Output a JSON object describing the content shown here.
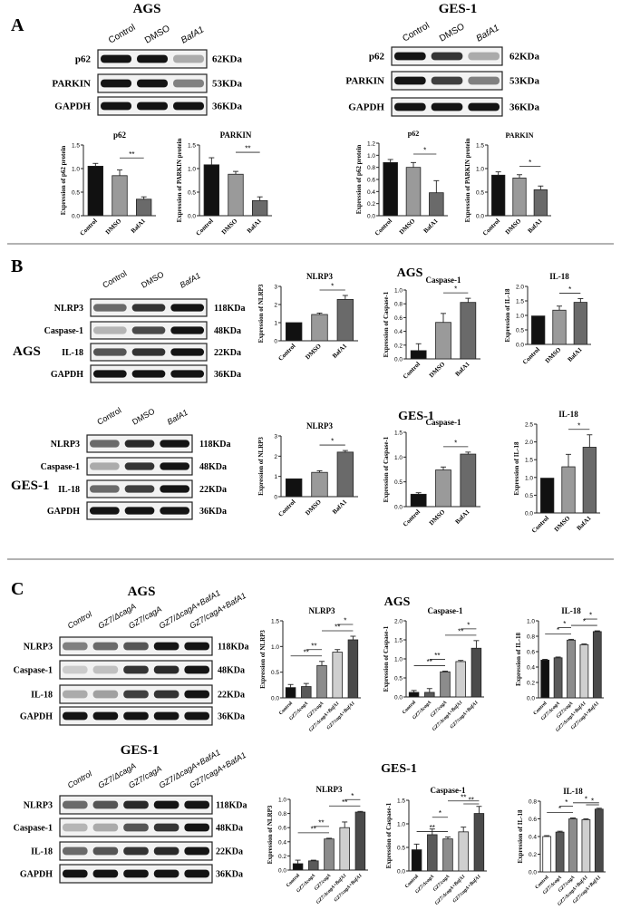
{
  "panel_a": {
    "letter": "A",
    "ags_title": "AGS",
    "ges1_title": "GES-1",
    "lanes": [
      "Control",
      "DMSO",
      "BafA1"
    ],
    "ags_blots": [
      {
        "label": "p62",
        "size": "62KDa",
        "intensity": [
          1,
          1,
          0.3
        ]
      },
      {
        "label": "PARKIN",
        "size": "53KDa",
        "intensity": [
          1,
          1,
          0.5
        ]
      },
      {
        "label": "GAPDH",
        "size": "36KDa",
        "intensity": [
          1,
          1,
          1
        ]
      }
    ],
    "ges1_blots": [
      {
        "label": "p62",
        "size": "62KDa",
        "intensity": [
          1,
          0.85,
          0.3
        ]
      },
      {
        "label": "PARKIN",
        "size": "53KDa",
        "intensity": [
          1,
          0.8,
          0.5
        ]
      },
      {
        "label": "GAPDH",
        "size": "36KDa",
        "intensity": [
          1,
          1,
          1
        ]
      }
    ]
  },
  "panel_b": {
    "letter": "B",
    "ags_label": "AGS",
    "ges1_label": "GES-1",
    "ags_group_title": "AGS",
    "ges1_group_title": "GES-1",
    "lanes": [
      "Control",
      "DMSO",
      "BafA1"
    ],
    "ags_blots": [
      {
        "label": "NLRP3",
        "size": "118KDa",
        "intensity": [
          0.6,
          0.85,
          1
        ]
      },
      {
        "label": "Caspase-1",
        "size": "48KDa",
        "intensity": [
          0.25,
          0.75,
          1
        ]
      },
      {
        "label": "IL-18",
        "size": "22KDa",
        "intensity": [
          0.7,
          0.85,
          1
        ]
      },
      {
        "label": "GAPDH",
        "size": "36KDa",
        "intensity": [
          1,
          1,
          1
        ]
      }
    ],
    "ges1_blots": [
      {
        "label": "NLRP3",
        "size": "118KDa",
        "intensity": [
          0.6,
          0.9,
          1
        ]
      },
      {
        "label": "Caspase-1",
        "size": "48KDa",
        "intensity": [
          0.3,
          0.85,
          1
        ]
      },
      {
        "label": "IL-18",
        "size": "22KDa",
        "intensity": [
          0.6,
          0.8,
          1
        ]
      },
      {
        "label": "GAPDH",
        "size": "36KDa",
        "intensity": [
          1,
          1,
          1
        ]
      }
    ]
  },
  "panel_c": {
    "letter": "C",
    "ags_title": "AGS",
    "ges1_title": "GES-1",
    "ags_chart_title": "AGS",
    "ges1_chart_title": "GES-1",
    "lanes": [
      "Control",
      "GZ7/ΔcagA",
      "GZ7/cagA",
      "GZ7/ΔcagA+BafA1",
      "GZ7/cagA+BafA1"
    ],
    "ags_blots": [
      {
        "label": "NLRP3",
        "size": "118KDa",
        "intensity": [
          0.5,
          0.6,
          0.7,
          1,
          1
        ]
      },
      {
        "label": "Caspase-1",
        "size": "48KDa",
        "intensity": [
          0.15,
          0.2,
          0.85,
          0.9,
          1
        ]
      },
      {
        "label": "IL-18",
        "size": "22KDa",
        "intensity": [
          0.3,
          0.35,
          0.8,
          0.85,
          1
        ]
      },
      {
        "label": "GAPDH",
        "size": "36KDa",
        "intensity": [
          1,
          1,
          1,
          1,
          1
        ]
      }
    ],
    "ges1_blots": [
      {
        "label": "NLRP3",
        "size": "118KDa",
        "intensity": [
          0.6,
          0.7,
          0.9,
          1,
          1
        ]
      },
      {
        "label": "Caspase-1",
        "size": "48KDa",
        "intensity": [
          0.25,
          0.3,
          0.7,
          0.85,
          1
        ]
      },
      {
        "label": "IL-18",
        "size": "22KDa",
        "intensity": [
          0.6,
          0.7,
          0.85,
          0.9,
          1
        ]
      },
      {
        "label": "GAPDH",
        "size": "36KDa",
        "intensity": [
          1,
          1,
          1,
          1,
          1
        ]
      }
    ]
  },
  "chart_data": [
    {
      "id": "a_ags_p62",
      "type": "bar",
      "title": "p62",
      "ylabel": "Expression of p62 protein",
      "categories": [
        "Control",
        "DMSO",
        "BafA1"
      ],
      "values": [
        1.05,
        0.85,
        0.35
      ],
      "errors": [
        0.06,
        0.12,
        0.05
      ],
      "colors": [
        "#111111",
        "#9a9a9a",
        "#6a6a6a"
      ],
      "ylim": [
        0,
        1.5
      ],
      "yticks": [
        "0.0",
        "0.5",
        "1.0",
        "1.5"
      ],
      "sig": [
        {
          "from": 1,
          "to": 2,
          "label": "**"
        }
      ]
    },
    {
      "id": "a_ags_parkin",
      "type": "bar",
      "title": "PARKIN",
      "ylabel": "Expression of PARKIN protein",
      "categories": [
        "Control",
        "DMSO",
        "BafA1"
      ],
      "values": [
        1.08,
        0.88,
        0.32
      ],
      "errors": [
        0.15,
        0.06,
        0.08
      ],
      "colors": [
        "#111111",
        "#9a9a9a",
        "#6a6a6a"
      ],
      "ylim": [
        0,
        1.5
      ],
      "yticks": [
        "0.0",
        "0.5",
        "1.0",
        "1.5"
      ],
      "sig": [
        {
          "from": 1,
          "to": 2,
          "label": "**"
        }
      ]
    },
    {
      "id": "a_ges1_p62",
      "type": "bar",
      "title": "p62",
      "ylabel": "Expression of p62 protein",
      "categories": [
        "Control",
        "DMSO",
        "BafA1"
      ],
      "values": [
        0.88,
        0.8,
        0.38
      ],
      "errors": [
        0.05,
        0.08,
        0.2
      ],
      "colors": [
        "#111111",
        "#9a9a9a",
        "#6a6a6a"
      ],
      "ylim": [
        0,
        1.2
      ],
      "yticks": [
        "0.0",
        "0.2",
        "0.4",
        "0.6",
        "0.8",
        "1.0",
        "1.2"
      ],
      "sig": [
        {
          "from": 1,
          "to": 2,
          "label": "*"
        }
      ]
    },
    {
      "id": "a_ges1_parkin",
      "type": "bar",
      "title": "PARKIN",
      "ylabel": "Expression of PARKIN protein",
      "categories": [
        "Control",
        "DMSO",
        "BafA1"
      ],
      "values": [
        0.86,
        0.8,
        0.55
      ],
      "errors": [
        0.07,
        0.07,
        0.08
      ],
      "colors": [
        "#111111",
        "#9a9a9a",
        "#6a6a6a"
      ],
      "ylim": [
        0,
        1.5
      ],
      "yticks": [
        "0.0",
        "0.5",
        "1.0",
        "1.5"
      ],
      "sig": [
        {
          "from": 1,
          "to": 2,
          "label": "*"
        }
      ]
    },
    {
      "id": "b_ags_nlrp3",
      "type": "bar",
      "title": "NLRP3",
      "ylabel": "Expression of NLRP3",
      "categories": [
        "Control",
        "DMSO",
        "BafA1"
      ],
      "values": [
        1.0,
        1.45,
        2.28
      ],
      "errors": [
        0,
        0.08,
        0.22
      ],
      "colors": [
        "#111111",
        "#9a9a9a",
        "#6a6a6a"
      ],
      "ylim": [
        0,
        3
      ],
      "yticks": [
        "0",
        "1",
        "2",
        "3"
      ],
      "sig": [
        {
          "from": 1,
          "to": 2,
          "label": "*"
        }
      ]
    },
    {
      "id": "b_ags_casp1",
      "type": "bar",
      "title": "Caspase-1",
      "ylabel": "Expression of Caspase-1",
      "categories": [
        "Control",
        "DMSO",
        "BafA1"
      ],
      "values": [
        0.12,
        0.53,
        0.82
      ],
      "errors": [
        0.1,
        0.13,
        0.06
      ],
      "colors": [
        "#111111",
        "#9a9a9a",
        "#6a6a6a"
      ],
      "ylim": [
        0,
        1.0
      ],
      "yticks": [
        "0.0",
        "0.2",
        "0.4",
        "0.6",
        "0.8",
        "1.0"
      ],
      "sig": [
        {
          "from": 1,
          "to": 2,
          "label": "*"
        }
      ]
    },
    {
      "id": "b_ags_il18",
      "type": "bar",
      "title": "IL-18",
      "ylabel": "Expression of IL-18",
      "categories": [
        "Control",
        "DMSO",
        "BafA1"
      ],
      "values": [
        0.98,
        1.18,
        1.45
      ],
      "errors": [
        0,
        0.14,
        0.13
      ],
      "colors": [
        "#111111",
        "#9a9a9a",
        "#6a6a6a"
      ],
      "ylim": [
        0,
        2.0
      ],
      "yticks": [
        "0.0",
        "0.5",
        "1.0",
        "1.5",
        "2.0"
      ],
      "sig": [
        {
          "from": 1,
          "to": 2,
          "label": "*"
        }
      ]
    },
    {
      "id": "b_ges1_nlrp3",
      "type": "bar",
      "title": "NLRP3",
      "ylabel": "Expression of NLRP3",
      "categories": [
        "Control",
        "DMSO",
        "BafA1"
      ],
      "values": [
        0.88,
        1.2,
        2.2
      ],
      "errors": [
        0,
        0.08,
        0.08
      ],
      "colors": [
        "#111111",
        "#9a9a9a",
        "#6a6a6a"
      ],
      "ylim": [
        0,
        3
      ],
      "yticks": [
        "0",
        "1",
        "2",
        "3"
      ],
      "sig": [
        {
          "from": 1,
          "to": 2,
          "label": "*"
        }
      ]
    },
    {
      "id": "b_ges1_casp1",
      "type": "bar",
      "title": "Caspase-1",
      "ylabel": "Expression of Caspase-1",
      "categories": [
        "Control",
        "DMSO",
        "BafA1"
      ],
      "values": [
        0.25,
        0.74,
        1.06
      ],
      "errors": [
        0.03,
        0.06,
        0.04
      ],
      "colors": [
        "#111111",
        "#9a9a9a",
        "#6a6a6a"
      ],
      "ylim": [
        0,
        1.5
      ],
      "yticks": [
        "0.0",
        "0.5",
        "1.0",
        "1.5"
      ],
      "sig": [
        {
          "from": 1,
          "to": 2,
          "label": "*"
        }
      ]
    },
    {
      "id": "b_ges1_il18",
      "type": "bar",
      "title": "IL-18",
      "ylabel": "Expression of IL-18",
      "categories": [
        "Control",
        "DMSO",
        "BafA1"
      ],
      "values": [
        0.98,
        1.3,
        1.85
      ],
      "errors": [
        0,
        0.35,
        0.35
      ],
      "colors": [
        "#111111",
        "#9a9a9a",
        "#6a6a6a"
      ],
      "ylim": [
        0,
        2.5
      ],
      "yticks": [
        "0.0",
        "0.5",
        "1.0",
        "1.5",
        "2.0",
        "2.5"
      ],
      "sig": [
        {
          "from": 1,
          "to": 2,
          "label": "*"
        }
      ]
    },
    {
      "id": "c_ags_nlrp3",
      "type": "bar",
      "title": "NLRP3",
      "ylabel": "Expression of NLRP3",
      "categories": [
        "Control",
        "GZ7/ΔcagA",
        "GZ7/cagA",
        "GZ7/ΔcagA+BafA1",
        "GZ7/cagA+BafA1"
      ],
      "values": [
        0.2,
        0.22,
        0.63,
        0.89,
        1.13
      ],
      "errors": [
        0.06,
        0.06,
        0.08,
        0.05,
        0.07
      ],
      "colors": [
        "#111111",
        "#5a5a5a",
        "#8c8c8c",
        "#cfcfcf",
        "#4a4a4a"
      ],
      "ylim": [
        0,
        1.5
      ],
      "yticks": [
        "0.0",
        "0.5",
        "1.0",
        "1.5"
      ],
      "sig": [
        {
          "from": 0,
          "to": 2,
          "label": "**"
        },
        {
          "from": 1,
          "to": 2,
          "label": "**"
        },
        {
          "from": 2,
          "to": 4,
          "label": "**"
        },
        {
          "from": 3,
          "to": 4,
          "label": "*"
        }
      ]
    },
    {
      "id": "c_ags_casp1",
      "type": "bar",
      "title": "Caspase-1",
      "ylabel": "Expression of Caspase-1",
      "categories": [
        "Control",
        "GZ7/ΔcagA",
        "GZ7/cagA",
        "GZ7/ΔcagA+BafA1",
        "GZ7/cagA+BafA1"
      ],
      "values": [
        0.12,
        0.12,
        0.66,
        0.93,
        1.28
      ],
      "errors": [
        0.05,
        0.1,
        0.02,
        0.03,
        0.2
      ],
      "colors": [
        "#111111",
        "#5a5a5a",
        "#8c8c8c",
        "#cfcfcf",
        "#4a4a4a"
      ],
      "ylim": [
        0,
        2.0
      ],
      "yticks": [
        "0.0",
        "0.5",
        "1.0",
        "1.5",
        "2.0"
      ],
      "sig": [
        {
          "from": 0,
          "to": 2,
          "label": "**"
        },
        {
          "from": 1,
          "to": 2,
          "label": "**"
        },
        {
          "from": 2,
          "to": 4,
          "label": "**"
        },
        {
          "from": 3,
          "to": 4,
          "label": "*"
        }
      ]
    },
    {
      "id": "c_ags_il18",
      "type": "bar",
      "title": "IL-18",
      "ylabel": "Expression of IL-18",
      "categories": [
        "Control",
        "GZ7/ΔcagA",
        "GZ7/cagA",
        "GZ7/ΔcagA+BafA1",
        "GZ7/cagA+BafA1"
      ],
      "values": [
        0.49,
        0.52,
        0.75,
        0.69,
        0.86
      ],
      "errors": [
        0.01,
        0.01,
        0.01,
        0.01,
        0.01
      ],
      "colors": [
        "#111111",
        "#5a5a5a",
        "#8c8c8c",
        "#cfcfcf",
        "#4a4a4a"
      ],
      "ylim": [
        0,
        1.0
      ],
      "yticks": [
        "0.0",
        "0.2",
        "0.4",
        "0.6",
        "0.8",
        "1.0"
      ],
      "sig": [
        {
          "from": 0,
          "to": 2,
          "label": "*"
        },
        {
          "from": 1,
          "to": 2,
          "label": "*"
        },
        {
          "from": 2,
          "to": 4,
          "label": "*"
        },
        {
          "from": 3,
          "to": 4,
          "label": "*"
        }
      ]
    },
    {
      "id": "c_ges1_nlrp3",
      "type": "bar",
      "title": "NLRP3",
      "ylabel": "Expression of NLRP3",
      "categories": [
        "Control",
        "GZ7/ΔcagA",
        "GZ7/cagA",
        "GZ7/ΔcagA+BafA1",
        "GZ7/cagA+BafA1"
      ],
      "values": [
        0.09,
        0.13,
        0.44,
        0.6,
        0.82
      ],
      "errors": [
        0.05,
        0.01,
        0.01,
        0.08,
        0.01
      ],
      "colors": [
        "#111111",
        "#5a5a5a",
        "#8c8c8c",
        "#cfcfcf",
        "#4a4a4a"
      ],
      "ylim": [
        0,
        1.0
      ],
      "yticks": [
        "0.0",
        "0.2",
        "0.4",
        "0.6",
        "0.8",
        "1.0"
      ],
      "sig": [
        {
          "from": 0,
          "to": 2,
          "label": "**"
        },
        {
          "from": 1,
          "to": 2,
          "label": "**"
        },
        {
          "from": 2,
          "to": 4,
          "label": "**"
        },
        {
          "from": 3,
          "to": 4,
          "label": "*"
        }
      ]
    },
    {
      "id": "c_ges1_casp1",
      "type": "bar",
      "title": "Caspase-1",
      "ylabel": "Expression of Caspase-1",
      "categories": [
        "Control",
        "GZ7/ΔcagA",
        "GZ7/cagA",
        "GZ7/ΔcagA+BafA1",
        "GZ7/cagA+BafA1"
      ],
      "values": [
        0.45,
        0.77,
        0.68,
        0.83,
        1.22
      ],
      "errors": [
        0.12,
        0.12,
        0.04,
        0.1,
        0.15
      ],
      "colors": [
        "#111111",
        "#5a5a5a",
        "#8c8c8c",
        "#cfcfcf",
        "#4a4a4a"
      ],
      "ylim": [
        0,
        1.5
      ],
      "yticks": [
        "0.0",
        "0.5",
        "1.0",
        "1.5"
      ],
      "sig": [
        {
          "from": 0,
          "to": 2,
          "label": "**"
        },
        {
          "from": 1,
          "to": 2,
          "label": "*"
        },
        {
          "from": 2,
          "to": 4,
          "label": "**"
        },
        {
          "from": 3,
          "to": 4,
          "label": "**"
        }
      ]
    },
    {
      "id": "c_ges1_il18",
      "type": "bar",
      "title": "IL-18",
      "ylabel": "Expression of IL-18",
      "categories": [
        "Control",
        "GZ7/ΔcagA",
        "GZ7/cagA",
        "GZ7/ΔcagA+BafA1",
        "GZ7/cagA+BafA1"
      ],
      "values": [
        0.4,
        0.45,
        0.6,
        0.59,
        0.71
      ],
      "errors": [
        0.01,
        0.01,
        0.01,
        0.01,
        0.01
      ],
      "colors": [
        "#ffffff",
        "#5a5a5a",
        "#8c8c8c",
        "#cfcfcf",
        "#4a4a4a"
      ],
      "ylim": [
        0,
        0.8
      ],
      "yticks": [
        "0.0",
        "0.2",
        "0.4",
        "0.6",
        "0.8"
      ],
      "sig": [
        {
          "from": 0,
          "to": 2,
          "label": "*"
        },
        {
          "from": 1,
          "to": 2,
          "label": "*"
        },
        {
          "from": 2,
          "to": 4,
          "label": "*"
        },
        {
          "from": 3,
          "to": 4,
          "label": "*"
        }
      ]
    }
  ]
}
